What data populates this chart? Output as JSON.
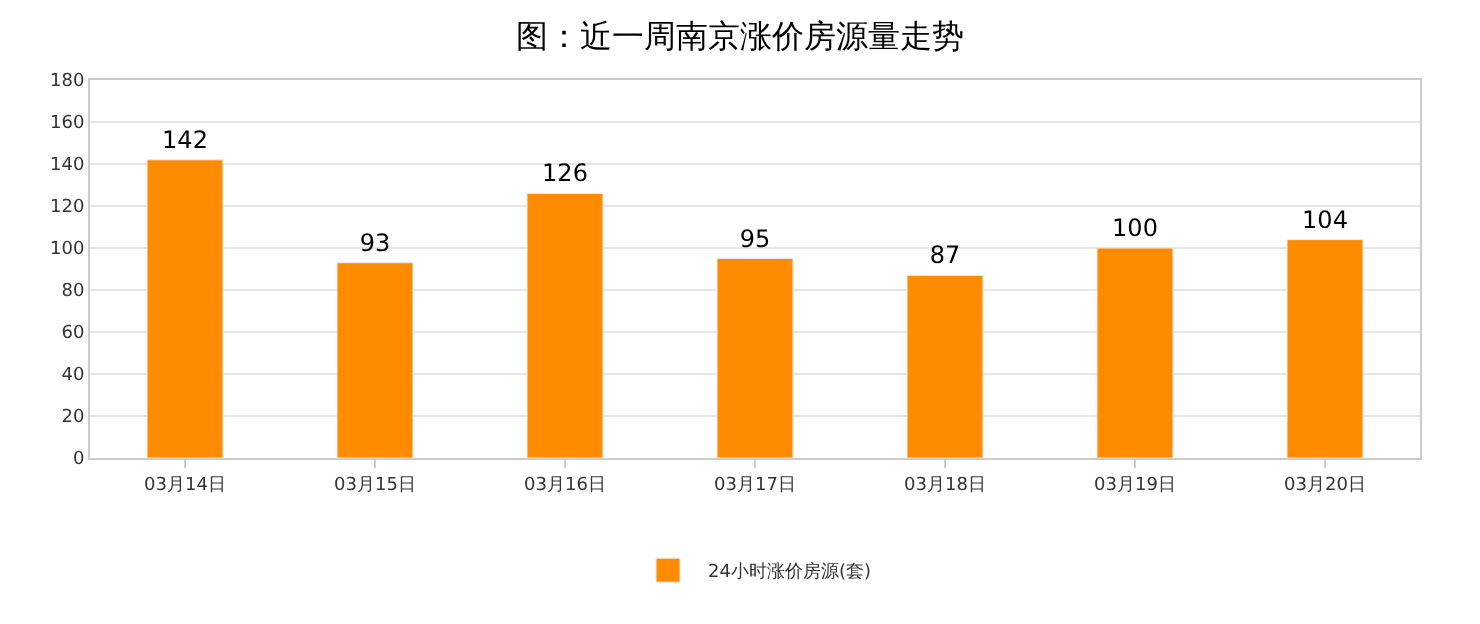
{
  "chart_data": {
    "type": "bar",
    "title": "图：近一周南京涨价房源量走势",
    "categories": [
      "03月14日",
      "03月15日",
      "03月16日",
      "03月17日",
      "03月18日",
      "03月19日",
      "03月20日"
    ],
    "series": [
      {
        "name": "24小时涨价房源(套)",
        "color": "#ff8c00",
        "values": [
          142,
          93,
          126,
          95,
          87,
          100,
          104
        ]
      }
    ],
    "ylim": [
      0,
      180
    ],
    "yticks": [
      0,
      20,
      40,
      60,
      80,
      100,
      120,
      140,
      160,
      180
    ],
    "grid": "y",
    "legend": "bottom",
    "data_labels": true
  }
}
